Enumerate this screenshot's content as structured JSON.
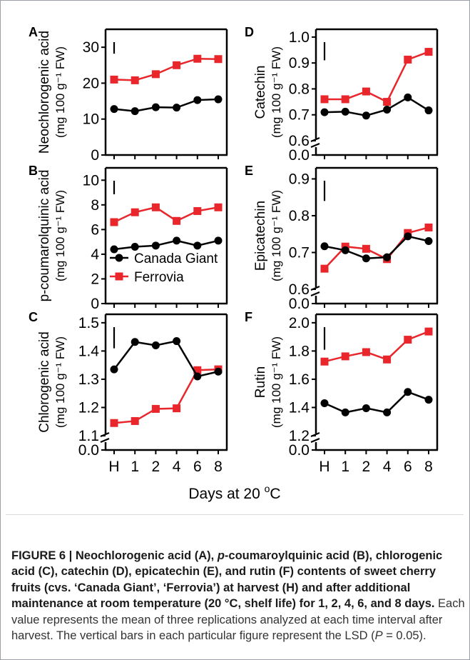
{
  "chart_data": [
    {
      "panel": "A",
      "type": "line",
      "ylabel_line1": "Neochlorogenic acid",
      "ylabel_line2": "(mg 100 g⁻¹ FW)",
      "categories": [
        "H",
        "1",
        "2",
        "4",
        "6",
        "8"
      ],
      "yticks": [
        "0",
        "10",
        "20",
        "30"
      ],
      "ylim": [
        0,
        35
      ],
      "axis_break": false,
      "series": [
        {
          "name": "Canada Giant",
          "marker": "circle",
          "color": "#000000",
          "values": [
            12.8,
            12.2,
            13.3,
            13.2,
            15.3,
            15.5
          ]
        },
        {
          "name": "Ferrovia",
          "marker": "square",
          "color": "#e8262b",
          "values": [
            21.0,
            20.8,
            22.5,
            25.0,
            26.8,
            26.7
          ]
        }
      ],
      "lsd": 3.2
    },
    {
      "panel": "B",
      "type": "line",
      "ylabel_line1": "p-coumarolquinic acid",
      "ylabel_line2": "(mg 100 g⁻¹ FW)",
      "categories": [
        "H",
        "1",
        "2",
        "4",
        "6",
        "8"
      ],
      "yticks": [
        "0",
        "2",
        "4",
        "6",
        "8",
        "10"
      ],
      "ylim": [
        0,
        11
      ],
      "axis_break": false,
      "series": [
        {
          "name": "Canada Giant",
          "marker": "circle",
          "color": "#000000",
          "values": [
            4.4,
            4.6,
            4.7,
            5.1,
            4.7,
            5.1
          ]
        },
        {
          "name": "Ferrovia",
          "marker": "square",
          "color": "#e8262b",
          "values": [
            6.6,
            7.4,
            7.8,
            6.7,
            7.5,
            7.8
          ]
        }
      ],
      "lsd": 1.1,
      "legend": {
        "position": "bottom-left",
        "entries": [
          "Canada Giant",
          "Ferrovia"
        ]
      }
    },
    {
      "panel": "C",
      "type": "line",
      "ylabel_line1": "Chlorogenic acid",
      "ylabel_line2": "(mg 100 g⁻¹ FW)",
      "categories": [
        "H",
        "1",
        "2",
        "4",
        "6",
        "8"
      ],
      "yticks": [
        "0.0",
        "1.1",
        "1.2",
        "1.3",
        "1.4",
        "1.5"
      ],
      "ylim": [
        1.1,
        1.53
      ],
      "axis_break": true,
      "series": [
        {
          "name": "Canada Giant",
          "marker": "circle",
          "color": "#000000",
          "values": [
            1.335,
            1.432,
            1.42,
            1.435,
            1.31,
            1.327
          ]
        },
        {
          "name": "Ferrovia",
          "marker": "square",
          "color": "#e8262b",
          "values": [
            1.145,
            1.152,
            1.195,
            1.197,
            1.332,
            1.335
          ]
        }
      ],
      "lsd": 0.075
    },
    {
      "panel": "D",
      "type": "line",
      "ylabel_line1": "Catechin",
      "ylabel_line2": "(mg 100 g⁻¹ FW)",
      "categories": [
        "H",
        "1",
        "2",
        "4",
        "6",
        "8"
      ],
      "yticks": [
        "0.0",
        "0.6",
        "0.7",
        "0.8",
        "0.9",
        "1.0"
      ],
      "ylim": [
        0.6,
        1.03
      ],
      "axis_break": true,
      "series": [
        {
          "name": "Canada Giant",
          "marker": "circle",
          "color": "#000000",
          "values": [
            0.71,
            0.712,
            0.697,
            0.72,
            0.767,
            0.717
          ]
        },
        {
          "name": "Ferrovia",
          "marker": "square",
          "color": "#e8262b",
          "values": [
            0.76,
            0.76,
            0.79,
            0.75,
            0.913,
            0.943
          ]
        }
      ],
      "lsd": 0.07
    },
    {
      "panel": "E",
      "type": "line",
      "ylabel_line1": "Epicatechin",
      "ylabel_line2": "(mg 100 g⁻¹ FW)",
      "categories": [
        "H",
        "1",
        "2",
        "4",
        "6",
        "8"
      ],
      "yticks": [
        "0.0",
        "0.6",
        "0.7",
        "0.8",
        "0.9"
      ],
      "ylim": [
        0.6,
        0.93
      ],
      "axis_break": true,
      "series": [
        {
          "name": "Canada Giant",
          "marker": "circle",
          "color": "#000000",
          "values": [
            0.717,
            0.706,
            0.684,
            0.687,
            0.744,
            0.731
          ]
        },
        {
          "name": "Ferrovia",
          "marker": "square",
          "color": "#e8262b",
          "values": [
            0.656,
            0.716,
            0.71,
            0.682,
            0.753,
            0.768
          ]
        }
      ],
      "lsd": 0.055
    },
    {
      "panel": "F",
      "type": "line",
      "ylabel_line1": "Rutin",
      "ylabel_line2": "(mg 100 g⁻¹ FW)",
      "categories": [
        "H",
        "1",
        "2",
        "4",
        "6",
        "8"
      ],
      "yticks": [
        "0.0",
        "1.2",
        "1.4",
        "1.6",
        "1.8",
        "2.0"
      ],
      "ylim": [
        1.2,
        2.06
      ],
      "axis_break": true,
      "series": [
        {
          "name": "Canada Giant",
          "marker": "circle",
          "color": "#000000",
          "values": [
            1.43,
            1.365,
            1.395,
            1.365,
            1.51,
            1.455
          ]
        },
        {
          "name": "Ferrovia",
          "marker": "square",
          "color": "#e8262b",
          "values": [
            1.725,
            1.762,
            1.792,
            1.74,
            1.88,
            1.938
          ]
        }
      ],
      "lsd": 0.16
    }
  ],
  "xlabel_main": "Days at 20 ",
  "xlabel_super": "o",
  "xlabel_end": "C",
  "caption": {
    "bold_1": "FIGURE 6 | Neochlorogenic acid (A), ",
    "bold_italic_p": "p",
    "bold_2": "-coumaroylquinic acid (B), chlorogenic acid (C), catechin (D), epicatechin (E), and rutin (F) contents of sweet cherry fruits (cvs. ‘Canada Giant’, ‘Ferrovia’) at harvest (H) and after additional maintenance at room temperature (20 °C, shelf life) for 1, 2, 4, 6, and 8 days.",
    "normal_1": " Each value represents the mean of three replications analyzed at each time interval after harvest. The vertical bars in each particular figure represent the LSD (",
    "italic_P": "P",
    "normal_2": " = 0.05)."
  }
}
